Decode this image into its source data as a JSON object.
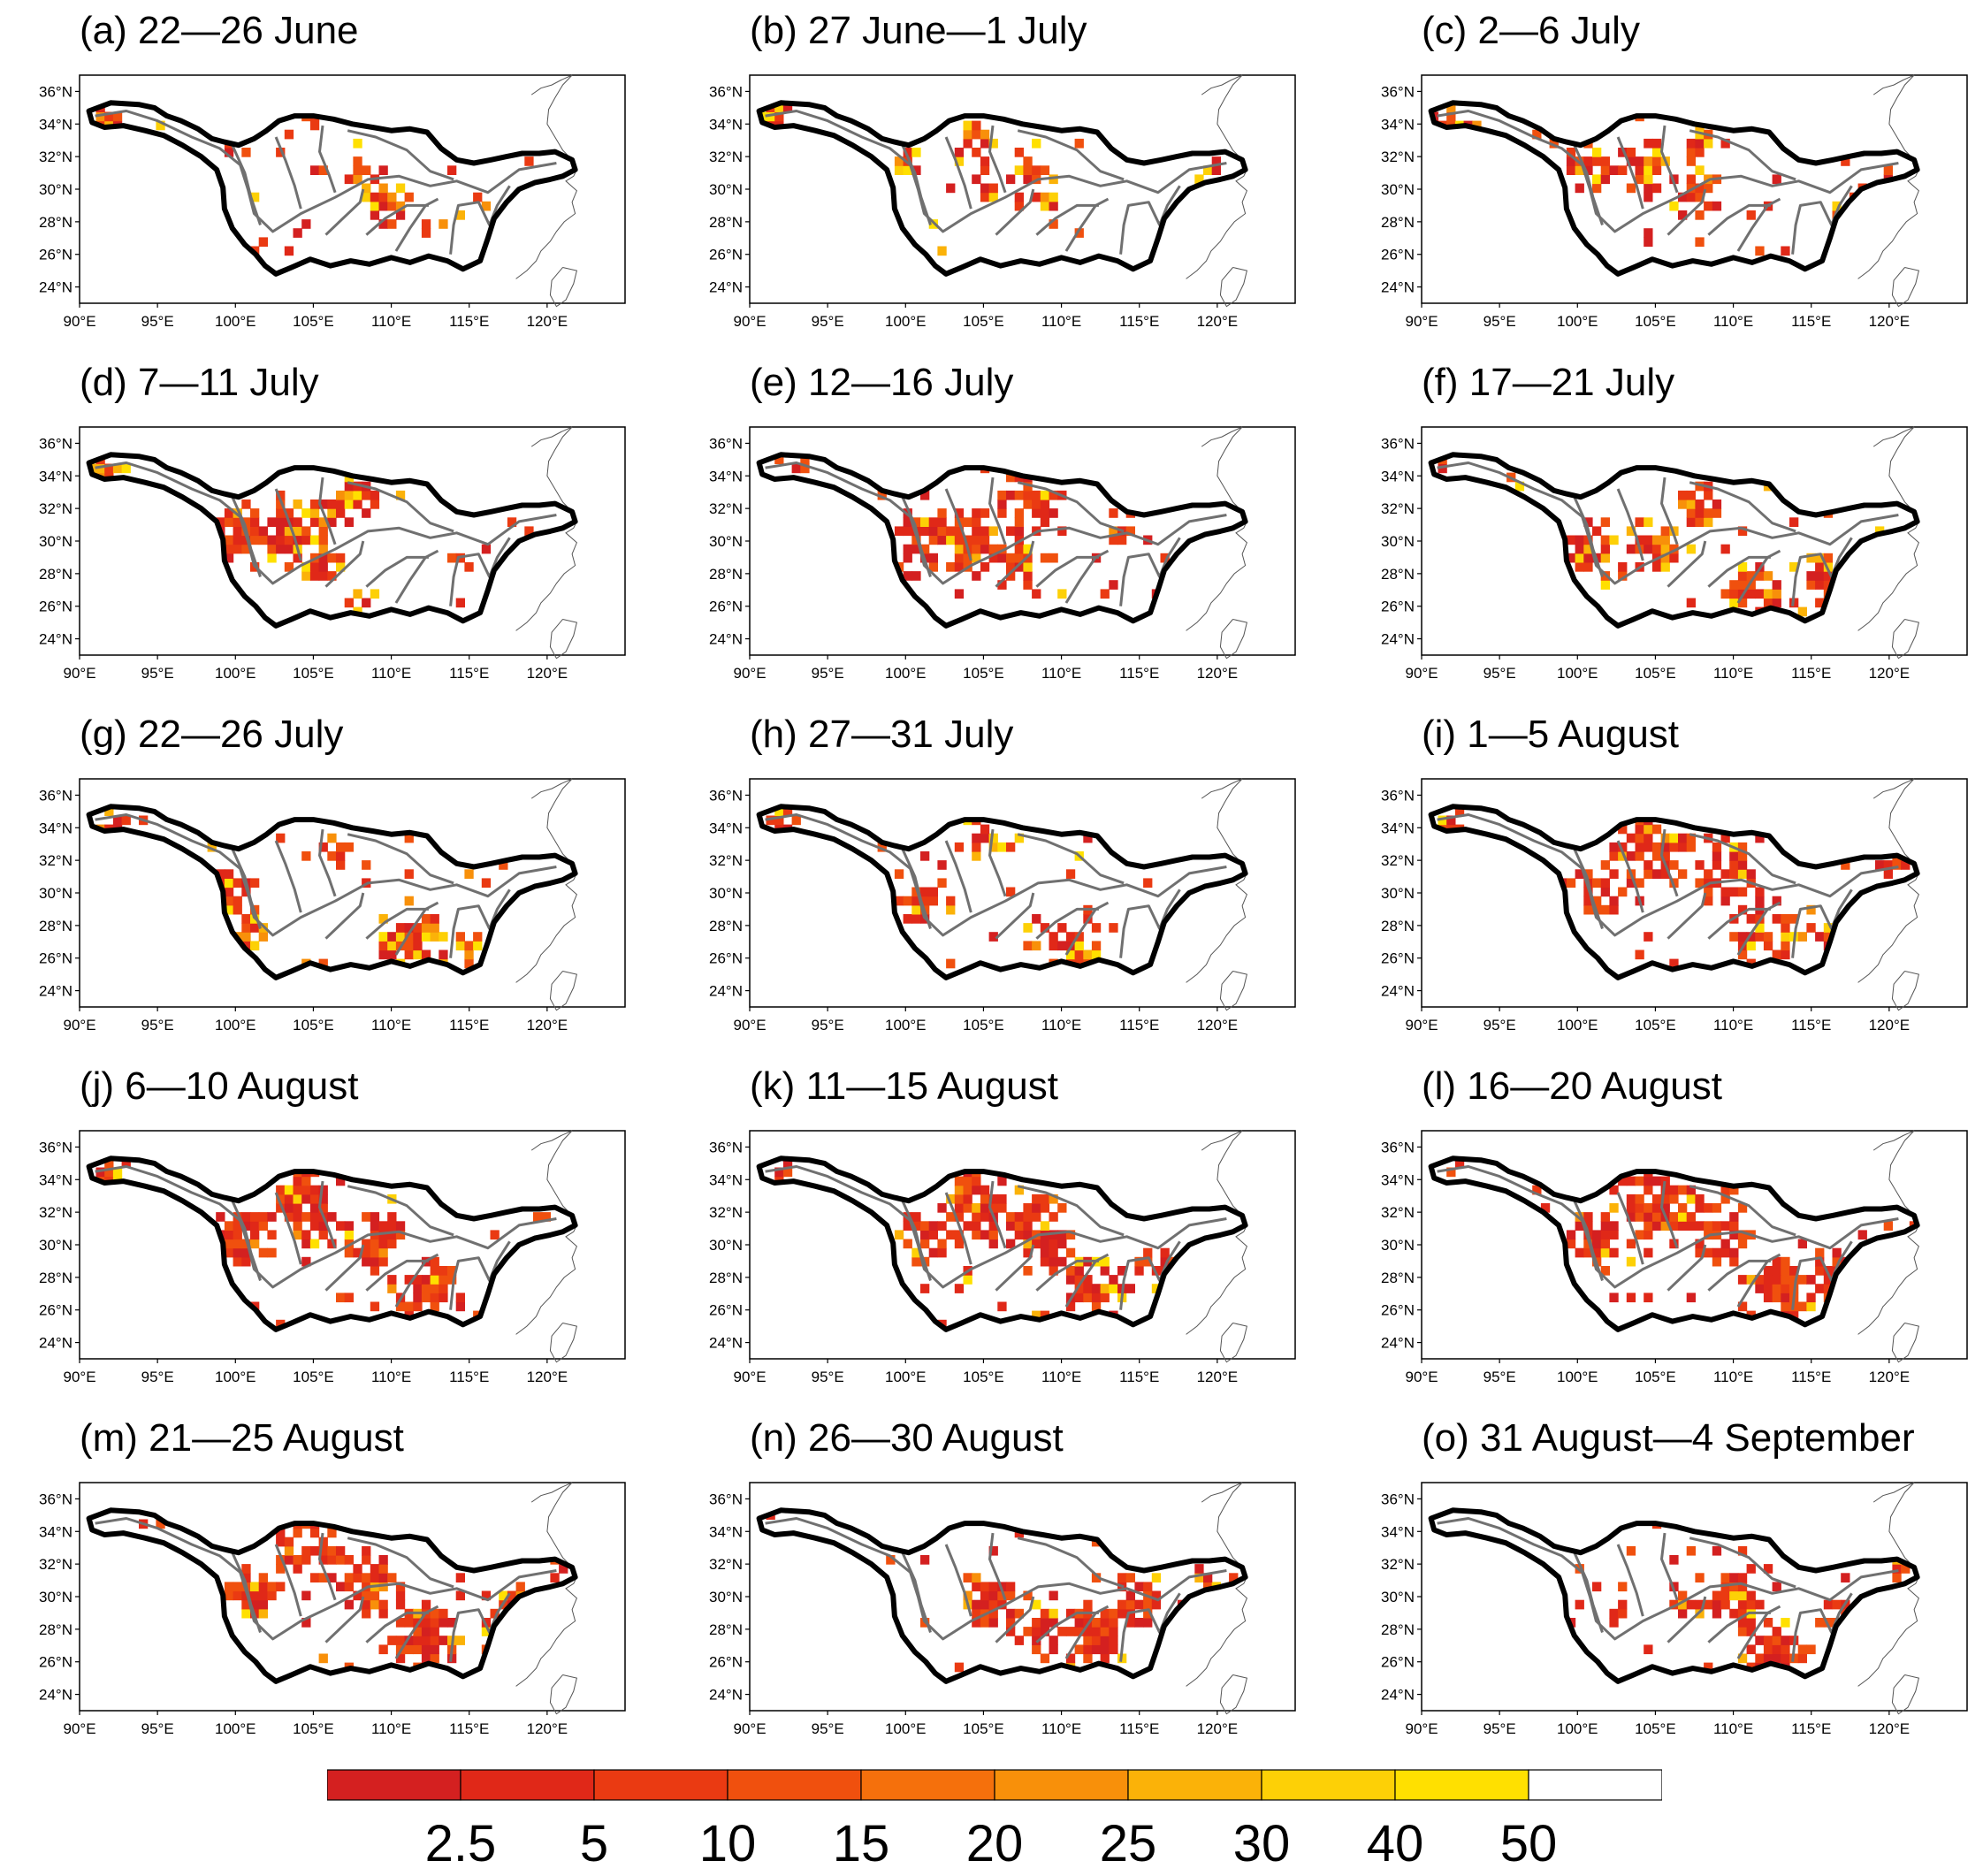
{
  "axes": {
    "lat_ticks": [
      "36°N",
      "34°N",
      "32°N",
      "30°N",
      "28°N",
      "26°N",
      "24°N"
    ],
    "lon_ticks": [
      "90°E",
      "95°E",
      "100°E",
      "105°E",
      "110°E",
      "115°E",
      "120°E"
    ]
  },
  "panels": [
    {
      "title": "(a) 22—26 June"
    },
    {
      "title": "(b) 27 June—1 July"
    },
    {
      "title": "(c) 2—6 July"
    },
    {
      "title": "(d) 7—11 July"
    },
    {
      "title": "(e) 12—16 July"
    },
    {
      "title": "(f) 17—21 July"
    },
    {
      "title": "(g) 22—26 July"
    },
    {
      "title": "(h) 27—31 July"
    },
    {
      "title": "(i) 1—5 August"
    },
    {
      "title": "(j) 6—10 August"
    },
    {
      "title": "(k) 11—15 August"
    },
    {
      "title": "(l) 16—20 August"
    },
    {
      "title": "(m) 21—25 August"
    },
    {
      "title": "(n) 26—30 August"
    },
    {
      "title": "(o) 31 August—4 September"
    }
  ],
  "colorbar": {
    "labels": [
      "2.5",
      "5",
      "10",
      "15",
      "20",
      "25",
      "30",
      "40",
      "50"
    ],
    "colors": [
      "#d42020",
      "#e02818",
      "#ea3a12",
      "#f0500e",
      "#f5700c",
      "#f8900a",
      "#fbb208",
      "#fdd006",
      "#ffe000",
      "#ffffff"
    ]
  }
}
